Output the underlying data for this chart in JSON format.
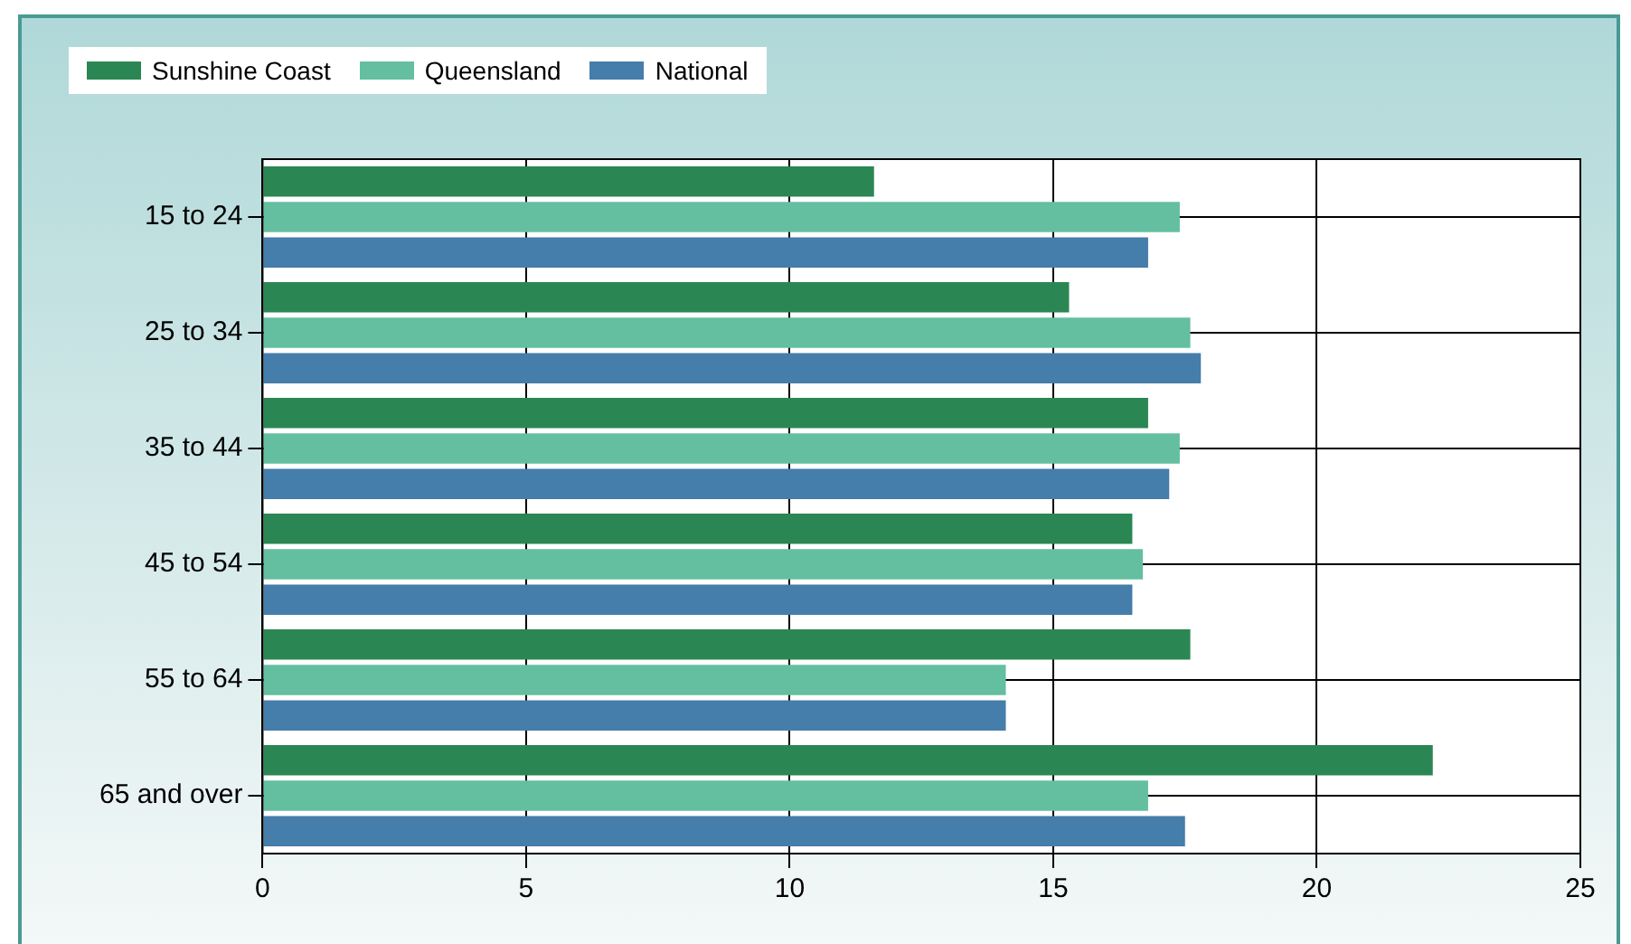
{
  "chart_data": {
    "type": "bar",
    "orientation": "horizontal",
    "categories": [
      "15 to 24",
      "25 to 34",
      "35 to 44",
      "45 to 54",
      "55 to 64",
      "65 and over"
    ],
    "series": [
      {
        "name": "Sunshine Coast",
        "color": "#2a8753",
        "values": [
          11.6,
          15.3,
          16.8,
          16.5,
          17.6,
          22.2
        ]
      },
      {
        "name": "Queensland",
        "color": "#63bfa0",
        "values": [
          17.4,
          17.6,
          17.4,
          16.7,
          14.1,
          16.8
        ]
      },
      {
        "name": "National",
        "color": "#457dab",
        "values": [
          16.8,
          17.8,
          17.2,
          16.5,
          14.1,
          17.5
        ]
      }
    ],
    "xlim": [
      0,
      25
    ],
    "xticks": [
      0,
      5,
      10,
      15,
      20,
      25
    ],
    "grid": true,
    "legend": "top left"
  }
}
